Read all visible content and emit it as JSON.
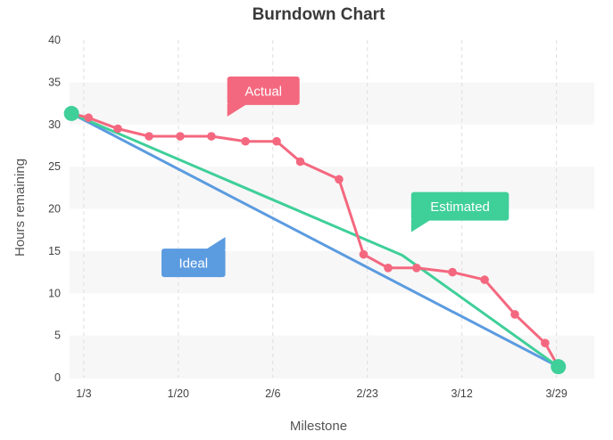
{
  "chart_data": {
    "type": "line",
    "title": "Burndown Chart",
    "xlabel": "Milestone",
    "ylabel": "Hours remaining",
    "categories": [
      "1/3",
      "1/20",
      "2/6",
      "2/23",
      "3/12",
      "3/29"
    ],
    "xlim": [
      -0.15,
      5.4
    ],
    "ylim": [
      0,
      40
    ],
    "yticks": [
      0,
      5,
      10,
      15,
      20,
      25,
      30,
      35,
      40
    ],
    "grid": "vertical dashed, alternating horizontal bands",
    "series": [
      {
        "name": "Ideal",
        "color": "#5b9be0",
        "points": [
          [
            -0.13,
            31.3
          ],
          [
            5.02,
            1.3
          ]
        ]
      },
      {
        "name": "Estimated",
        "color": "#3fcf99",
        "points": [
          [
            -0.13,
            31.3
          ],
          [
            3.37,
            14.5
          ],
          [
            5.02,
            1.3
          ]
        ]
      },
      {
        "name": "Actual",
        "color": "#f4687f",
        "markers": true,
        "points": [
          [
            -0.13,
            31.3
          ],
          [
            0.05,
            30.8
          ],
          [
            0.36,
            29.5
          ],
          [
            0.69,
            28.6
          ],
          [
            1.02,
            28.6
          ],
          [
            1.35,
            28.6
          ],
          [
            1.71,
            28.0
          ],
          [
            2.04,
            28.0
          ],
          [
            2.29,
            25.6
          ],
          [
            2.7,
            23.5
          ],
          [
            2.96,
            14.6
          ],
          [
            3.22,
            13.0
          ],
          [
            3.52,
            13.0
          ],
          [
            3.9,
            12.5
          ],
          [
            4.24,
            11.6
          ],
          [
            4.56,
            7.5
          ],
          [
            4.88,
            4.1
          ],
          [
            5.02,
            1.3
          ]
        ]
      }
    ],
    "endpoints": {
      "color": "#3fcf99",
      "points": [
        [
          -0.13,
          31.3
        ],
        [
          5.02,
          1.3
        ]
      ]
    },
    "annotations": [
      {
        "text": "Actual",
        "color": "#f4687f",
        "at": [
          1.9,
          34.0
        ],
        "pointer": "bottom-left"
      },
      {
        "text": "Estimated",
        "color": "#3fcf99",
        "at": [
          3.98,
          20.3
        ],
        "pointer": "bottom-left"
      },
      {
        "text": "Ideal",
        "color": "#5b9be0",
        "at": [
          1.16,
          13.6
        ],
        "pointer": "top-right"
      }
    ]
  }
}
